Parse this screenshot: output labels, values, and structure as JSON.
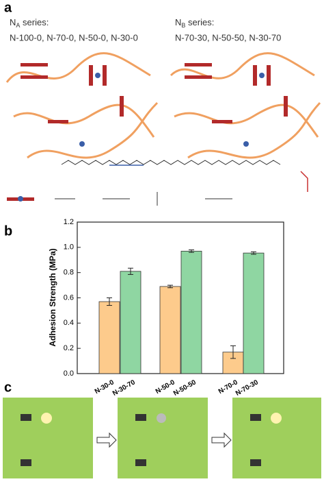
{
  "panel_a": {
    "label": "a",
    "na": {
      "base": "N",
      "sub": "A",
      "rest": " series:",
      "members": "N-100-0, N-70-0, N-50-0, N-30-0"
    },
    "nb": {
      "base": "N",
      "sub": "B",
      "rest": " series:",
      "members": "N-70-30, N-50-50, N-30-70"
    }
  },
  "panel_b": {
    "label": "b"
  },
  "chart_data": {
    "type": "bar",
    "ylabel": "Adhesion Strength (MPa)",
    "categories": [
      "N-30-0",
      "N-30-70",
      "N-50-0",
      "N-50-50",
      "N-70-0",
      "N-70-30"
    ],
    "values": [
      0.57,
      0.81,
      0.69,
      0.97,
      0.17,
      0.955
    ],
    "errors": [
      0.03,
      0.025,
      0.01,
      0.01,
      0.05,
      0.01
    ],
    "colors": [
      "#fdcb8c",
      "#8fd6a2",
      "#fdcb8c",
      "#8fd6a2",
      "#fdcb8c",
      "#8fd6a2"
    ],
    "ylim": [
      0,
      1.2
    ],
    "yticks": [
      {
        "value": 0,
        "label": "0.0"
      },
      0.2,
      0.4,
      0.6,
      0.8,
      {
        "value": 1,
        "label": "1.0"
      },
      1.2
    ]
  },
  "panel_c": {
    "label": "c"
  }
}
